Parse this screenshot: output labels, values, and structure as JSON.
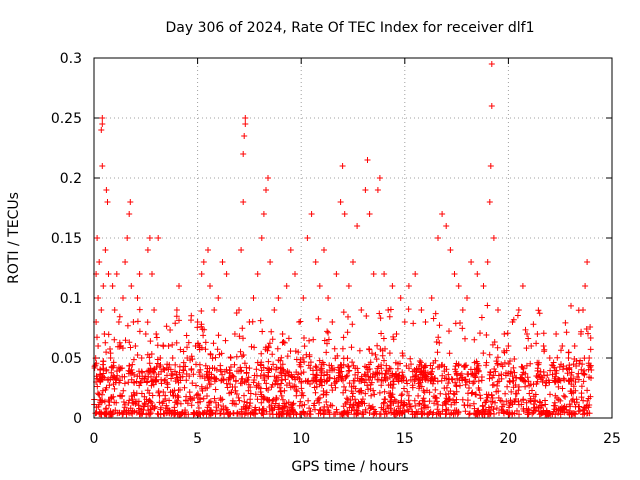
{
  "chart_data": {
    "type": "scatter",
    "title": "Day 306 of 2024, Rate Of TEC Index for receiver dlf1",
    "xlabel": "GPS time / hours",
    "ylabel": "ROTI / TECUs",
    "xlim": [
      0,
      25
    ],
    "ylim": [
      0,
      0.3
    ],
    "xticks": [
      0,
      5,
      10,
      15,
      20,
      25
    ],
    "yticks": [
      0,
      0.05,
      0.1,
      0.15,
      0.2,
      0.25,
      0.3
    ],
    "xtick_labels": [
      "0",
      "5",
      "10",
      "15",
      "20",
      "25"
    ],
    "ytick_labels": [
      "0",
      "0.05",
      "0.1",
      "0.15",
      "0.2",
      "0.25",
      "0.3"
    ],
    "grid": true,
    "marker": "plus",
    "color": "#ff0000",
    "series": [
      {
        "name": "ROTI",
        "note": "dense cloud of points; base level ~0.005-0.04 across all hours, with many bursts; representative sample",
        "points": [
          [
            0.1,
            0.03
          ],
          [
            0.1,
            0.08
          ],
          [
            0.1,
            0.12
          ],
          [
            0.15,
            0.15
          ],
          [
            0.2,
            0.06
          ],
          [
            0.2,
            0.1
          ],
          [
            0.25,
            0.13
          ],
          [
            0.3,
            0.04
          ],
          [
            0.35,
            0.09
          ],
          [
            0.35,
            0.24
          ],
          [
            0.4,
            0.25
          ],
          [
            0.4,
            0.245
          ],
          [
            0.4,
            0.21
          ],
          [
            0.45,
            0.11
          ],
          [
            0.5,
            0.07
          ],
          [
            0.55,
            0.14
          ],
          [
            0.6,
            0.19
          ],
          [
            0.65,
            0.18
          ],
          [
            0.7,
            0.12
          ],
          [
            0.8,
            0.05
          ],
          [
            0.9,
            0.11
          ],
          [
            1.0,
            0.09
          ],
          [
            1.1,
            0.12
          ],
          [
            1.2,
            0.08
          ],
          [
            1.3,
            0.06
          ],
          [
            1.4,
            0.1
          ],
          [
            1.5,
            0.13
          ],
          [
            1.6,
            0.15
          ],
          [
            1.7,
            0.17
          ],
          [
            1.75,
            0.18
          ],
          [
            1.8,
            0.11
          ],
          [
            1.9,
            0.08
          ],
          [
            2.0,
            0.06
          ],
          [
            2.1,
            0.1
          ],
          [
            2.2,
            0.12
          ],
          [
            2.3,
            0.05
          ],
          [
            2.5,
            0.07
          ],
          [
            2.6,
            0.14
          ],
          [
            2.7,
            0.15
          ],
          [
            2.8,
            0.12
          ],
          [
            2.9,
            0.09
          ],
          [
            3.0,
            0.07
          ],
          [
            3.1,
            0.15
          ],
          [
            3.2,
            0.05
          ],
          [
            3.4,
            0.04
          ],
          [
            3.6,
            0.06
          ],
          [
            3.8,
            0.05
          ],
          [
            4.0,
            0.09
          ],
          [
            4.1,
            0.11
          ],
          [
            4.3,
            0.04
          ],
          [
            4.5,
            0.05
          ],
          [
            4.7,
            0.04
          ],
          [
            4.9,
            0.06
          ],
          [
            5.0,
            0.08
          ],
          [
            5.2,
            0.12
          ],
          [
            5.3,
            0.13
          ],
          [
            5.5,
            0.14
          ],
          [
            5.6,
            0.11
          ],
          [
            5.8,
            0.09
          ],
          [
            6.0,
            0.1
          ],
          [
            6.2,
            0.13
          ],
          [
            6.4,
            0.12
          ],
          [
            6.6,
            0.05
          ],
          [
            6.8,
            0.07
          ],
          [
            7.0,
            0.09
          ],
          [
            7.1,
            0.14
          ],
          [
            7.2,
            0.18
          ],
          [
            7.2,
            0.22
          ],
          [
            7.25,
            0.235
          ],
          [
            7.3,
            0.245
          ],
          [
            7.3,
            0.25
          ],
          [
            7.5,
            0.08
          ],
          [
            7.7,
            0.1
          ],
          [
            7.9,
            0.12
          ],
          [
            8.1,
            0.15
          ],
          [
            8.2,
            0.17
          ],
          [
            8.3,
            0.19
          ],
          [
            8.4,
            0.2
          ],
          [
            8.5,
            0.13
          ],
          [
            8.7,
            0.09
          ],
          [
            8.9,
            0.1
          ],
          [
            9.1,
            0.07
          ],
          [
            9.3,
            0.11
          ],
          [
            9.5,
            0.14
          ],
          [
            9.7,
            0.12
          ],
          [
            9.9,
            0.08
          ],
          [
            10.1,
            0.1
          ],
          [
            10.3,
            0.15
          ],
          [
            10.5,
            0.17
          ],
          [
            10.7,
            0.13
          ],
          [
            10.9,
            0.11
          ],
          [
            11.1,
            0.14
          ],
          [
            11.3,
            0.1
          ],
          [
            11.5,
            0.08
          ],
          [
            11.7,
            0.12
          ],
          [
            11.9,
            0.18
          ],
          [
            12.0,
            0.21
          ],
          [
            12.1,
            0.17
          ],
          [
            12.3,
            0.11
          ],
          [
            12.5,
            0.13
          ],
          [
            12.7,
            0.16
          ],
          [
            12.9,
            0.09
          ],
          [
            13.1,
            0.19
          ],
          [
            13.2,
            0.215
          ],
          [
            13.3,
            0.17
          ],
          [
            13.5,
            0.12
          ],
          [
            13.7,
            0.19
          ],
          [
            13.8,
            0.2
          ],
          [
            14.0,
            0.12
          ],
          [
            14.2,
            0.09
          ],
          [
            14.4,
            0.11
          ],
          [
            14.6,
            0.07
          ],
          [
            14.8,
            0.1
          ],
          [
            15.0,
            0.08
          ],
          [
            15.2,
            0.11
          ],
          [
            15.5,
            0.12
          ],
          [
            15.8,
            0.09
          ],
          [
            16.0,
            0.08
          ],
          [
            16.3,
            0.1
          ],
          [
            16.6,
            0.15
          ],
          [
            16.8,
            0.17
          ],
          [
            17.0,
            0.16
          ],
          [
            17.2,
            0.14
          ],
          [
            17.4,
            0.12
          ],
          [
            17.6,
            0.11
          ],
          [
            17.8,
            0.09
          ],
          [
            18.0,
            0.1
          ],
          [
            18.2,
            0.13
          ],
          [
            18.5,
            0.12
          ],
          [
            18.8,
            0.11
          ],
          [
            19.0,
            0.13
          ],
          [
            19.1,
            0.18
          ],
          [
            19.15,
            0.21
          ],
          [
            19.2,
            0.26
          ],
          [
            19.2,
            0.295
          ],
          [
            19.3,
            0.15
          ],
          [
            19.5,
            0.09
          ],
          [
            19.8,
            0.07
          ],
          [
            20.0,
            0.06
          ],
          [
            20.2,
            0.08
          ],
          [
            20.5,
            0.09
          ],
          [
            20.7,
            0.11
          ],
          [
            20.9,
            0.07
          ],
          [
            21.1,
            0.06
          ],
          [
            21.4,
            0.07
          ],
          [
            21.7,
            0.06
          ],
          [
            22.0,
            0.05
          ],
          [
            22.3,
            0.07
          ],
          [
            22.6,
            0.06
          ],
          [
            22.9,
            0.05
          ],
          [
            23.2,
            0.06
          ],
          [
            23.5,
            0.07
          ],
          [
            23.6,
            0.09
          ],
          [
            23.7,
            0.11
          ],
          [
            23.8,
            0.13
          ],
          [
            23.9,
            0.05
          ],
          [
            24.0,
            0.04
          ]
        ]
      }
    ],
    "background_cloud": {
      "description": "dense low-level scatter; values between 0.003 and 0.045 at nearly every time step from 0 to 24 h",
      "x_range": [
        0.0,
        24.0
      ],
      "y_range": [
        0.003,
        0.045
      ]
    }
  }
}
